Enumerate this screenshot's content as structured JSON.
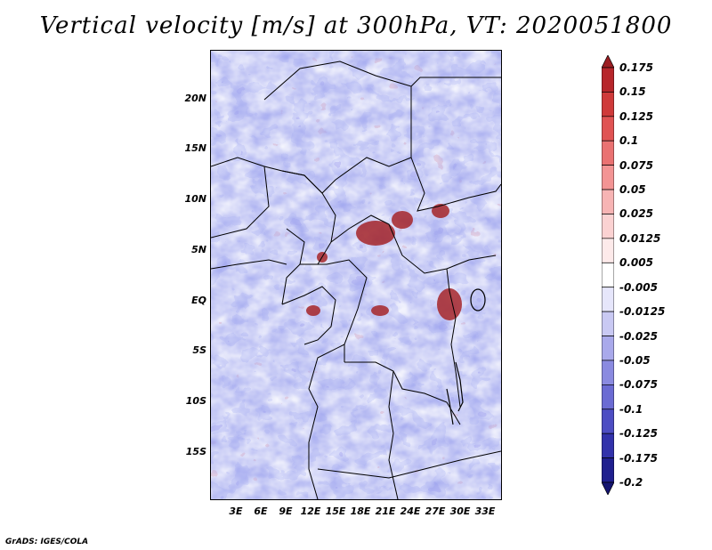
{
  "title": "Vertical velocity [m/s] at 300hPa, VT: 2020051800",
  "credit": "GrADS: IGES/COLA",
  "lat_labels": [
    "20N",
    "15N",
    "10N",
    "5N",
    "EQ",
    "5S",
    "10S",
    "15S"
  ],
  "lon_labels": [
    "3E",
    "6E",
    "9E",
    "12E",
    "15E",
    "18E",
    "21E",
    "24E",
    "27E",
    "30E",
    "33E"
  ],
  "colorbar": {
    "labels": [
      "0.175",
      "0.15",
      "0.125",
      "0.1",
      "0.075",
      "0.05",
      "0.025",
      "0.0125",
      "0.005",
      "-0.005",
      "-0.0125",
      "-0.025",
      "-0.05",
      "-0.075",
      "-0.1",
      "-0.125",
      "-0.175",
      "-0.2"
    ],
    "colors": [
      "#9b1d22",
      "#b7262b",
      "#cf3a3a",
      "#e05353",
      "#ea7272",
      "#f39494",
      "#f7b4b4",
      "#fbd2d2",
      "#fdeaea",
      "#ffffff",
      "#e6e6fb",
      "#c9c9f3",
      "#a9a9eb",
      "#8a8ae0",
      "#6b6bd3",
      "#4d4dc3",
      "#3232ab",
      "#1f1f8f",
      "#141470"
    ]
  },
  "colors": {
    "blue_field": "#9da3ee",
    "red_field": "#f0a8a8",
    "strong_red": "#a6262a",
    "strong_blue": "#2b2b9a"
  }
}
